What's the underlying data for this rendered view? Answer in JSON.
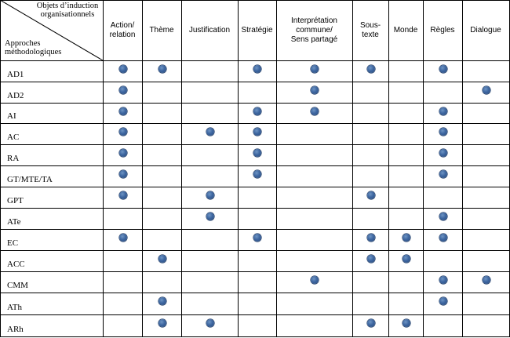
{
  "corner": {
    "top": "Objets d’induction organisationnels",
    "bottom": "Approches méthodologiques"
  },
  "columns": [
    "Action/ relation",
    "Thème",
    "Justification",
    "Stratégie",
    "Interprétation commune/ Sens partagé",
    "Sous-texte",
    "Monde",
    "Règles",
    "Dialogue"
  ],
  "column_headers_display": [
    "Action/\nrelation",
    "Thème",
    "Justification",
    "Stratégie",
    "Interprétation\ncommune/\nSens partagé",
    "Sous-\ntexte",
    "Monde",
    "Règles",
    "Dialogue"
  ],
  "rows": [
    {
      "label": "AD1",
      "marks": [
        true,
        true,
        false,
        true,
        true,
        true,
        false,
        true,
        false
      ]
    },
    {
      "label": "AD2",
      "marks": [
        true,
        false,
        false,
        false,
        true,
        false,
        false,
        false,
        true
      ]
    },
    {
      "label": "AI",
      "marks": [
        true,
        false,
        false,
        true,
        true,
        false,
        false,
        true,
        false
      ]
    },
    {
      "label": "AC",
      "marks": [
        true,
        false,
        true,
        true,
        false,
        false,
        false,
        true,
        false
      ]
    },
    {
      "label": "RA",
      "marks": [
        true,
        false,
        false,
        true,
        false,
        false,
        false,
        true,
        false
      ]
    },
    {
      "label": "GT/MTE/TA",
      "marks": [
        true,
        false,
        false,
        true,
        false,
        false,
        false,
        true,
        false
      ]
    },
    {
      "label": "GPT",
      "marks": [
        true,
        false,
        true,
        false,
        false,
        true,
        false,
        false,
        false
      ]
    },
    {
      "label": "ATe",
      "marks": [
        false,
        false,
        true,
        false,
        false,
        false,
        false,
        true,
        false
      ]
    },
    {
      "label": "EC",
      "marks": [
        true,
        false,
        false,
        true,
        false,
        true,
        true,
        true,
        false
      ]
    },
    {
      "label": "ACC",
      "marks": [
        false,
        true,
        false,
        false,
        false,
        true,
        true,
        false,
        false
      ]
    },
    {
      "label": "CMM",
      "marks": [
        false,
        false,
        false,
        false,
        true,
        false,
        false,
        true,
        true
      ]
    },
    {
      "label": "ATh",
      "marks": [
        false,
        true,
        false,
        false,
        false,
        false,
        false,
        true,
        false
      ]
    },
    {
      "label": "ARh",
      "marks": [
        false,
        true,
        true,
        false,
        false,
        true,
        true,
        false,
        false
      ]
    }
  ],
  "colors": {
    "dot": "#3d66a0",
    "line": "#000000"
  }
}
